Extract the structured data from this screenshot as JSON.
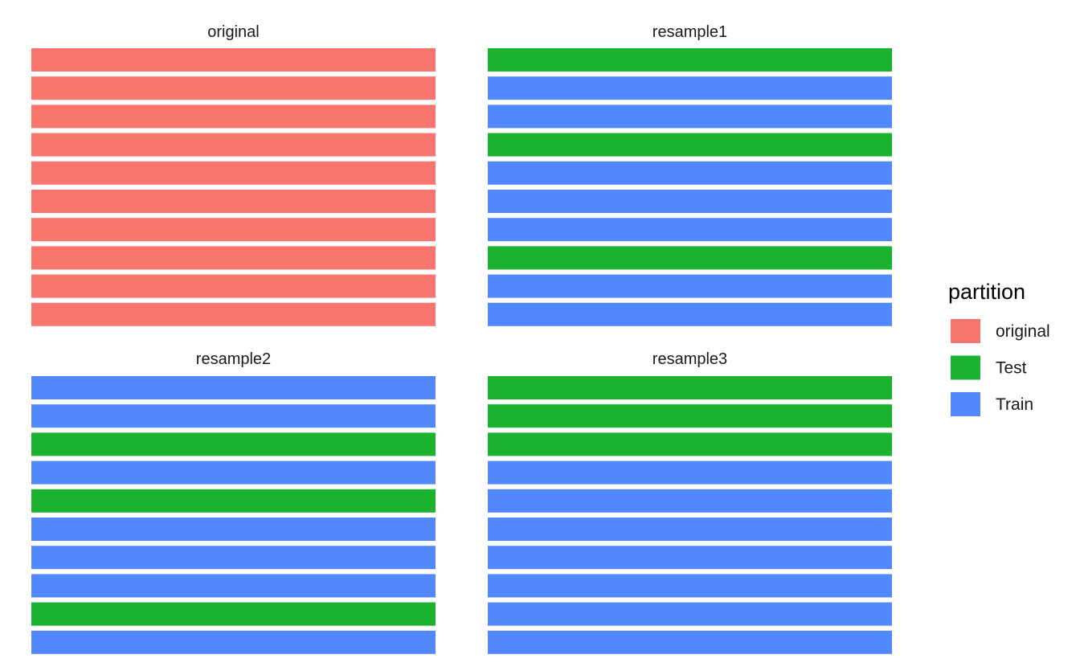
{
  "legend": {
    "title": "partition",
    "entries": [
      {
        "key": "original",
        "label": "original",
        "color": "#F8766D"
      },
      {
        "key": "Test",
        "label": "Test",
        "color": "#1AB22E"
      },
      {
        "key": "Train",
        "label": "Train",
        "color": "#5288FE"
      }
    ]
  },
  "panels": [
    {
      "title": "original",
      "rows": [
        "original",
        "original",
        "original",
        "original",
        "original",
        "original",
        "original",
        "original",
        "original",
        "original"
      ]
    },
    {
      "title": "resample1",
      "rows": [
        "Test",
        "Train",
        "Train",
        "Test",
        "Train",
        "Train",
        "Train",
        "Test",
        "Train",
        "Train"
      ]
    },
    {
      "title": "resample2",
      "rows": [
        "Train",
        "Train",
        "Test",
        "Train",
        "Test",
        "Train",
        "Train",
        "Train",
        "Test",
        "Train"
      ]
    },
    {
      "title": "resample3",
      "rows": [
        "Test",
        "Test",
        "Test",
        "Train",
        "Train",
        "Train",
        "Train",
        "Train",
        "Train",
        "Train"
      ]
    }
  ]
}
